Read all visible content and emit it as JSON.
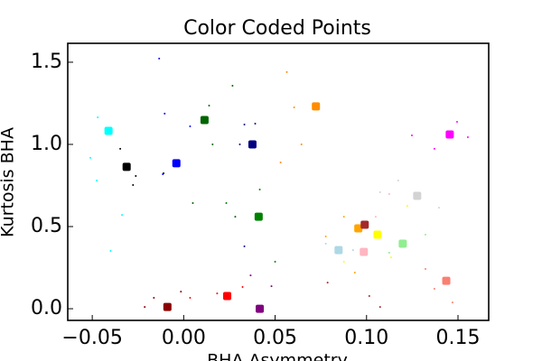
{
  "chart_data": {
    "type": "scatter",
    "title": "Color Coded Points",
    "xlabel": "BHA Asymmetry",
    "ylabel": "Kurtosis BHA",
    "xlim": [
      -0.0634,
      0.1668
    ],
    "ylim": [
      -0.071,
      1.615
    ],
    "xticks": [
      {
        "value": -0.05,
        "label": "−0.05"
      },
      {
        "value": 0,
        "label": "0.00"
      },
      {
        "value": 0.05,
        "label": "0.05"
      },
      {
        "value": 0.1,
        "label": "0.10"
      },
      {
        "value": 0.15,
        "label": "0.15"
      }
    ],
    "yticks": [
      {
        "value": 0,
        "label": "0.0"
      },
      {
        "value": 0.5,
        "label": "0.5"
      },
      {
        "value": 1,
        "label": "1.0"
      },
      {
        "value": 1.5,
        "label": "1.5"
      }
    ],
    "series": [
      {
        "color": "#00ffff",
        "center_x": -0.0411,
        "center_y": 1.082,
        "x": [
          -0.047,
          -0.051,
          -0.0475,
          -0.04,
          -0.0337
        ],
        "y": [
          1.165,
          0.918,
          0.78,
          0.352,
          0.571
        ]
      },
      {
        "color": "#000000",
        "center_x": -0.0312,
        "center_y": 0.863,
        "x": [
          -0.0262,
          -0.0347,
          -0.0277,
          -0.011
        ],
        "y": [
          0.808,
          0.973,
          0.753,
          0.824
        ]
      },
      {
        "color": "#0000ff",
        "center_x": -0.004,
        "center_y": 0.885,
        "x": [
          -0.0134,
          -0.0104,
          0.0035,
          -0.0114
        ],
        "y": [
          1.522,
          1.187,
          1.11,
          0.819
        ]
      },
      {
        "color": "#006400",
        "center_x": 0.0114,
        "center_y": 1.148,
        "x": [
          0.0267,
          0.0158,
          0.0282,
          0.005,
          0.0139
        ],
        "y": [
          1.357,
          1.0,
          0.56,
          0.643,
          1.236
        ]
      },
      {
        "color": "#000080",
        "center_x": 0.0376,
        "center_y": 1.0,
        "x": [
          0.0332,
          0.0307,
          0.0391,
          0.0332
        ],
        "y": [
          1.121,
          1.0,
          1.126,
          0.379
        ]
      },
      {
        "color": "#ff8c00",
        "center_x": 0.0723,
        "center_y": 1.231,
        "x": [
          0.0564,
          0.0604,
          0.0644,
          0.053
        ],
        "y": [
          1.44,
          1.225,
          1.0,
          0.89
        ]
      },
      {
        "color": "#ffa500",
        "center_x": 0.0955,
        "center_y": 0.489,
        "x": [
          0.0876,
          0.0777,
          0.0936
        ],
        "y": [
          0.56,
          0.44,
          0.22
        ]
      },
      {
        "color": "#008000",
        "center_x": 0.041,
        "center_y": 0.56,
        "x": [
          0.0233,
          0.0416,
          0.05
        ],
        "y": [
          0.643,
          0.725,
          0.286
        ]
      },
      {
        "color": "#8b0000",
        "center_x": -0.0089,
        "center_y": 0.011,
        "x": [
          -0.0163,
          -0.0015,
          -0.0213
        ],
        "y": [
          0.066,
          0.104,
          0.011
        ]
      },
      {
        "color": "#ff0000",
        "center_x": 0.0238,
        "center_y": 0.077,
        "x": [
          0.0035,
          0.0183,
          0.0322
        ],
        "y": [
          0.066,
          0.093,
          0.132
        ]
      },
      {
        "color": "#800080",
        "center_x": 0.0416,
        "center_y": 0.0,
        "x": [
          0.048,
          0.0366
        ],
        "y": [
          0.137,
          0.203
        ]
      },
      {
        "color": "#add8e6",
        "center_x": 0.0847,
        "center_y": 0.357,
        "x": [
          0.0777,
          0.0926
        ],
        "y": [
          0.396,
          0.357
        ]
      },
      {
        "color": "#ffff00",
        "center_x": 0.106,
        "center_y": 0.451,
        "x": [
          0.1223,
          0.1134,
          0.0876
        ],
        "y": [
          0.626,
          0.313,
          0.286
        ]
      },
      {
        "color": "#a52a2a",
        "center_x": 0.099,
        "center_y": 0.511,
        "x": [
          0.1015,
          0.0787,
          0.1074
        ],
        "y": [
          0.077,
          0.159,
          0.011
        ]
      },
      {
        "color": "#ffb6c1",
        "center_x": 0.0985,
        "center_y": 0.346,
        "x": [
          0.1124,
          0.105
        ],
        "y": [
          0.698,
          0.56
        ]
      },
      {
        "color": "#90ee90",
        "center_x": 0.1198,
        "center_y": 0.396,
        "x": [
          0.1322,
          0.1124
        ],
        "y": [
          0.451,
          0.341
        ]
      },
      {
        "color": "#d3d3d3",
        "center_x": 0.1277,
        "center_y": 0.687,
        "x": [
          0.1074,
          0.1396,
          0.1173
        ],
        "y": [
          0.709,
          0.615,
          0.78
        ]
      },
      {
        "color": "#ff00ff",
        "center_x": 0.1455,
        "center_y": 1.06,
        "x": [
          0.1248,
          0.1554,
          0.1371,
          0.1495
        ],
        "y": [
          1.055,
          1.044,
          0.973,
          1.137
        ]
      },
      {
        "color": "#fa8072",
        "center_x": 0.1436,
        "center_y": 0.17,
        "x": [
          0.1371,
          0.147,
          0.1322
        ],
        "y": [
          0.121,
          0.038,
          0.242
        ]
      }
    ]
  }
}
